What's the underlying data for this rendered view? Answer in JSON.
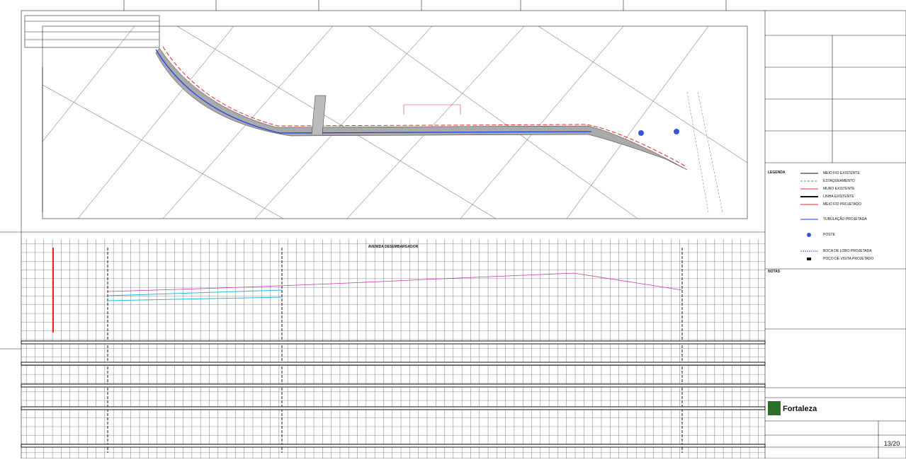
{
  "profile": {
    "title": "AVENIDA DESEMBARGADOR"
  },
  "legend": {
    "title": "LEGENDA",
    "items": [
      "MEIO FIO EXISTENTE",
      "ESTAQUEAMENTO",
      "MURO EXISTENTE",
      "LINHA EXISTENTE",
      "MEIO FIO PROJETADO",
      "TUBULAÇÃO PROJETADA",
      "POSTE",
      "BOCA DE LOBO PROJETADA",
      "POÇO DE VISITA PROJETADO"
    ]
  },
  "notes": {
    "title": "NOTAS"
  },
  "title_block": {
    "logo": "Fortaleza",
    "sheet": "13/20"
  }
}
